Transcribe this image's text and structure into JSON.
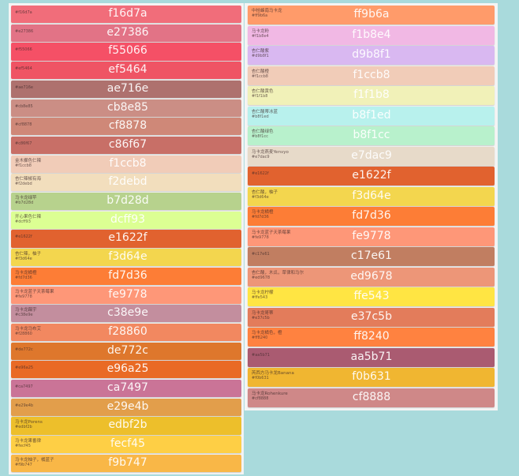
{
  "left": [
    {
      "hex": "f16d7a",
      "code": "#f16d7a"
    },
    {
      "hex": "e27386",
      "code": "#e27386"
    },
    {
      "hex": "f55066",
      "code": "#f55066"
    },
    {
      "hex": "ef5464",
      "code": "#ef5464"
    },
    {
      "hex": "ae716e",
      "code": "#ae716e"
    },
    {
      "hex": "cb8e85",
      "code": "#cb8e85"
    },
    {
      "hex": "cf8878",
      "code": "#cf8878"
    },
    {
      "hex": "c86f67",
      "code": "#c86f67"
    },
    {
      "name": "金木樨色仁辣",
      "hex": "f1ccb8",
      "code": "#f1ccb8"
    },
    {
      "name": "杏仁辣椒有海",
      "hex": "f2debd",
      "code": "#f2debd"
    },
    {
      "name": "马卡龙绿苹",
      "hex": "b7d28d",
      "code": "#b7d28d"
    },
    {
      "name": "开心果色仁辣",
      "hex": "dcff93",
      "code": "#dcff93"
    },
    {
      "hex": "e1622f",
      "code": "#e1622f"
    },
    {
      "name": "杏仁辣，柚子",
      "hex": "f3d64e",
      "code": "#f3d64e"
    },
    {
      "name": "马卡龙橘橙",
      "hex": "fd7d36",
      "code": "#fd7d36"
    },
    {
      "name": "马卡龙蓝子天茶莓果",
      "hex": "fe9778",
      "code": "#fe9778"
    },
    {
      "name": "马卡龙藕宇",
      "hex": "c38e9e",
      "code": "#c38e9e"
    },
    {
      "name": "马卡龙马布艾",
      "hex": "f28860",
      "code": "#f28860"
    },
    {
      "hex": "de772c",
      "code": "#de772c"
    },
    {
      "hex": "e96a25",
      "code": "#e96a25"
    },
    {
      "hex": "ca7497",
      "code": "#ca7497"
    },
    {
      "hex": "e29e4b",
      "code": "#e29e4b"
    },
    {
      "name": "马卡龙Porens",
      "hex": "edbf2b",
      "code": "#edbf2b"
    },
    {
      "name": "马卡龙果番律",
      "hex": "fecf45",
      "code": "#fecf45"
    },
    {
      "name": "马卡龙柚子，橘蓝子",
      "hex": "f9b747",
      "code": "#f9b747"
    }
  ],
  "right": [
    {
      "name": "中桔蜂南马卡龙",
      "hex": "ff9b6a",
      "code": "#ff9b6a"
    },
    {
      "name": "马卡龙粉",
      "hex": "f1b8e4",
      "code": "#f1b8e4"
    },
    {
      "name": "杏仁酸紫",
      "hex": "d9b8f1",
      "code": "#d9b8f1"
    },
    {
      "name": "杏仁酸橙",
      "hex": "f1ccb8",
      "code": "#f1ccb8"
    },
    {
      "name": "杏仁酸黄色",
      "hex": "f1f1b8",
      "code": "#f1f1b8"
    },
    {
      "name": "杏仁酸蒂冰蓝",
      "hex": "b8f1ed",
      "code": "#b8f1ed"
    },
    {
      "name": "杏仁酸绿色",
      "hex": "b8f1cc",
      "code": "#b8f1cc"
    },
    {
      "name": "马卡龙燕麦Yenvyo",
      "hex": "e7dac9",
      "code": "#e7dac9"
    },
    {
      "hex": "e1622f",
      "code": "#e1622f"
    },
    {
      "name": "杏仁酸，柚子",
      "hex": "f3d64e",
      "code": "#f3d64e"
    },
    {
      "name": "马卡龙橘橙",
      "hex": "fd7d36",
      "code": "#fd7d36"
    },
    {
      "name": "马卡龙蓝子天茶莓果",
      "hex": "fe9778",
      "code": "#fe9778"
    },
    {
      "hex": "c17e61",
      "code": "#c17e61"
    },
    {
      "name": "杏仁酸，木瓜，草律和马尔",
      "hex": "ed9678",
      "code": "#ed9678"
    },
    {
      "name": "马卡龙柠檬",
      "hex": "ffe543",
      "code": "#ffe543"
    },
    {
      "name": "马卡龙哥蒂",
      "hex": "e37c5b",
      "code": "#e37c5b"
    },
    {
      "name": "马卡龙橘色，橙",
      "hex": "ff8240",
      "code": "#ff8240"
    },
    {
      "hex": "aa5b71",
      "code": "#aa5b71"
    },
    {
      "name": "芮西方马卡龙Banana",
      "hex": "f0b631",
      "code": "#f0b631"
    },
    {
      "name": "马卡龙Rohenkure",
      "hex": "cf8888",
      "code": "#cf8888"
    }
  ]
}
